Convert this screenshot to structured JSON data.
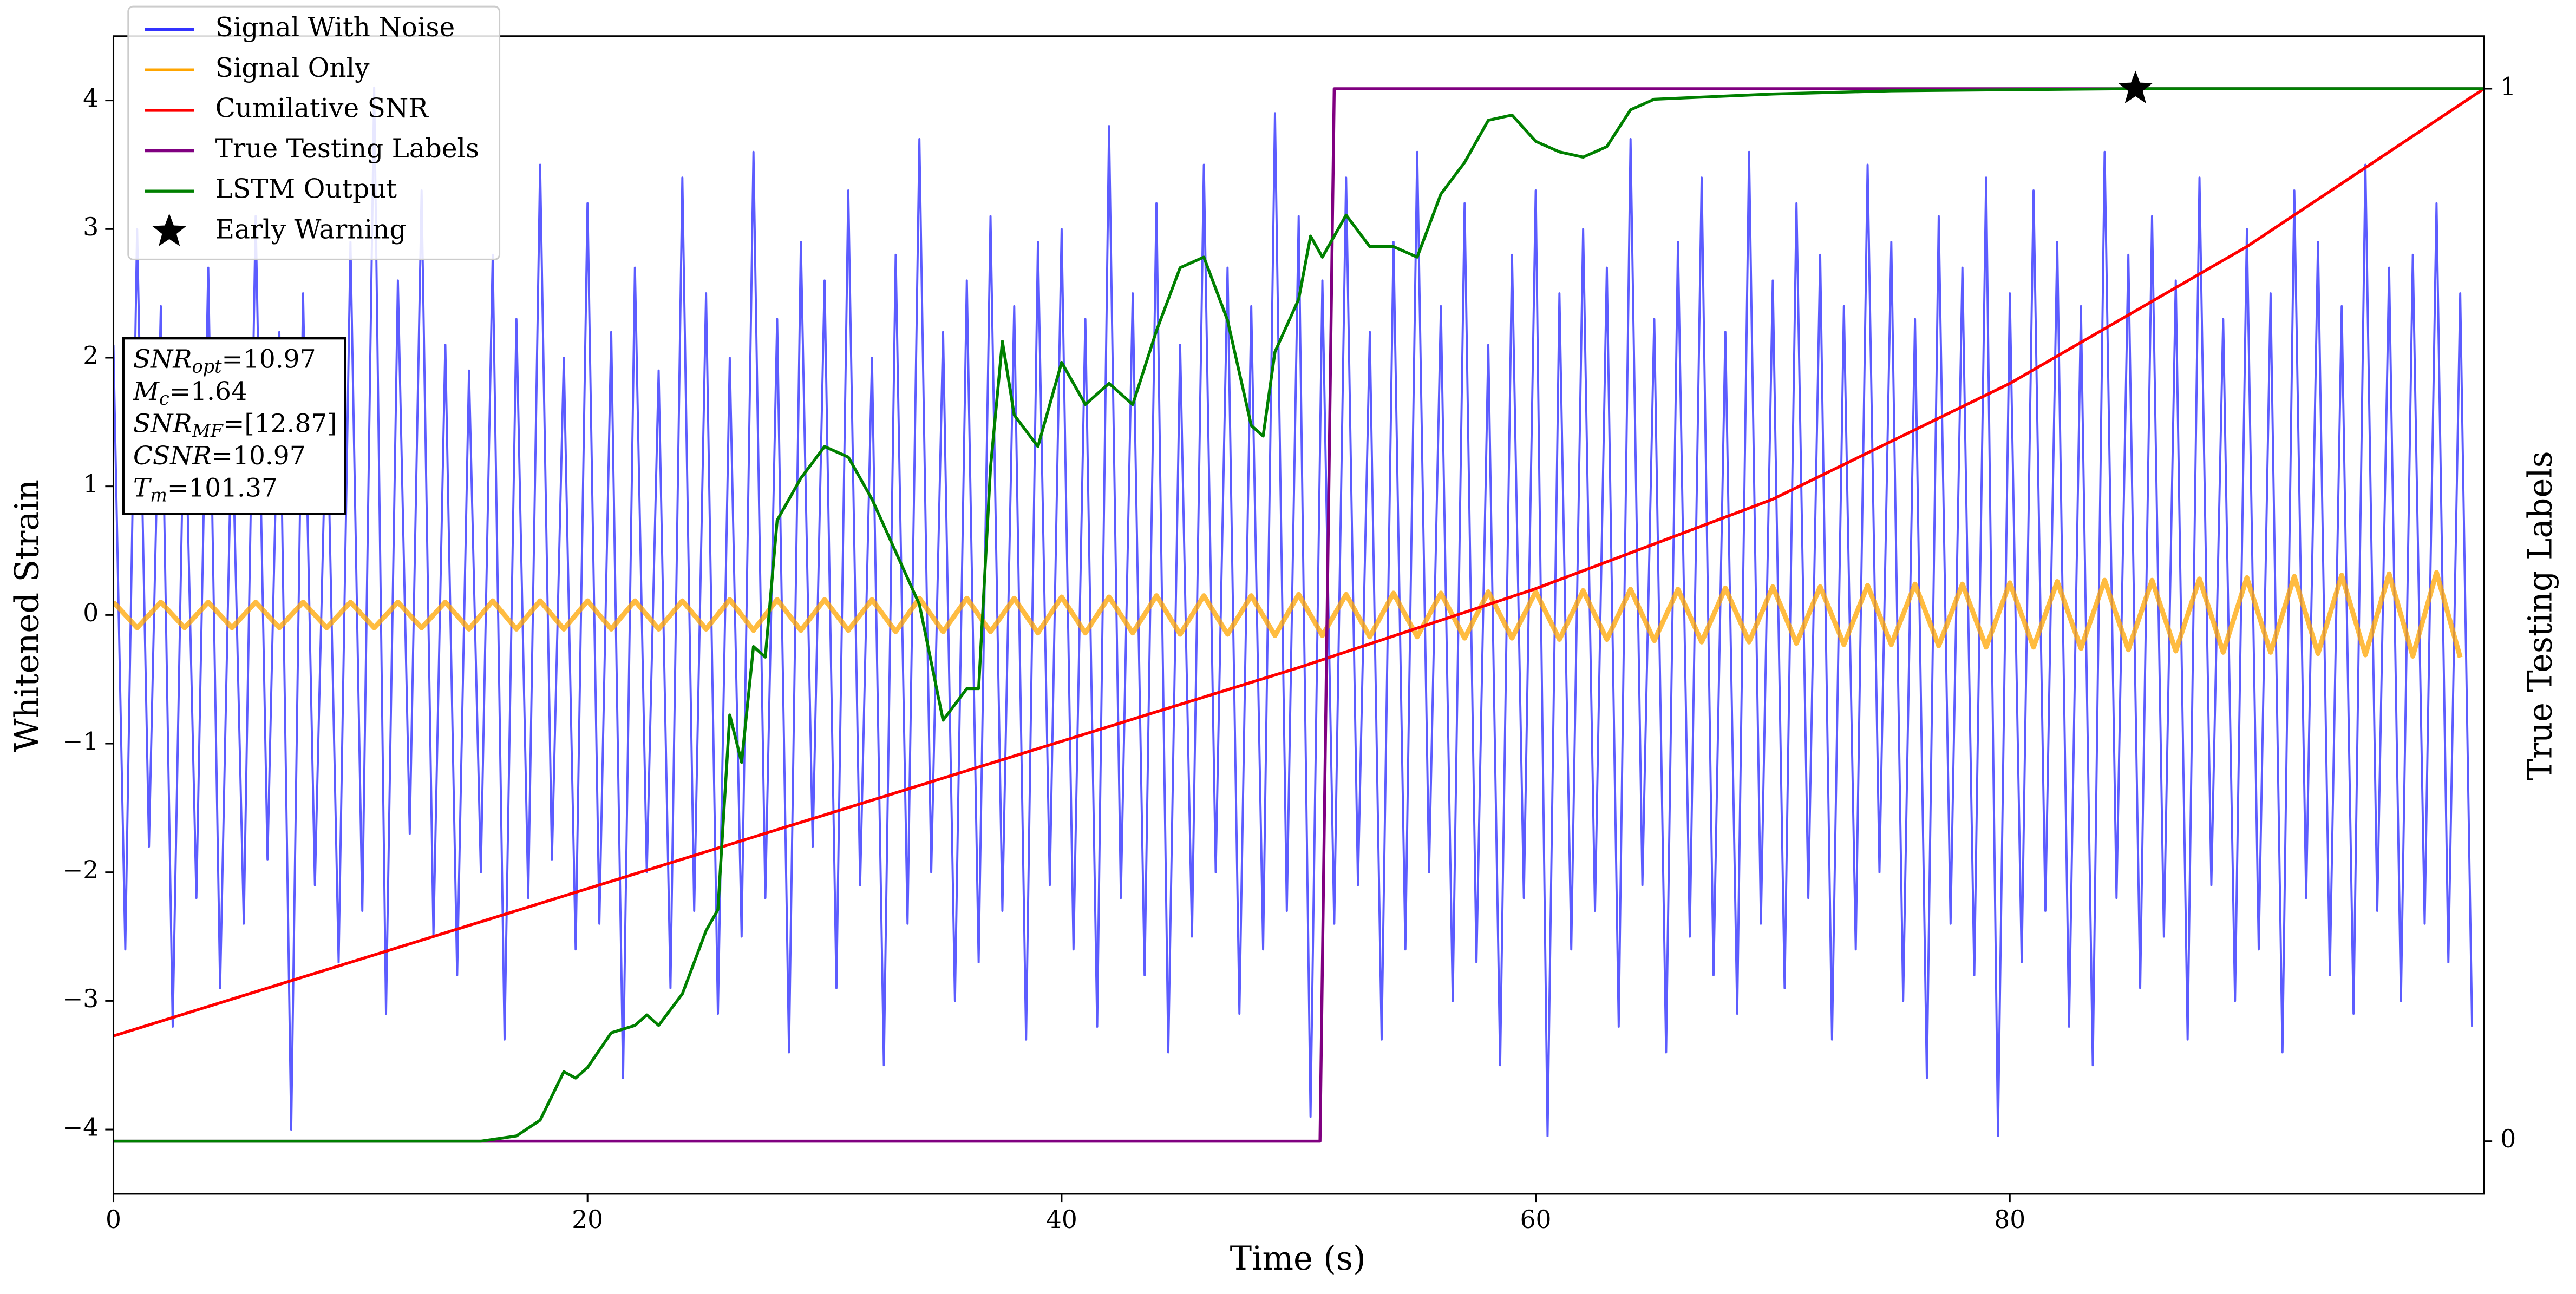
{
  "chart_data": {
    "type": "line",
    "xlabel": "Time (s)",
    "ylabel": "Whitened Strain",
    "y2label": "True Testing Labels",
    "xlim": [
      0,
      100
    ],
    "ylim": [
      -4.5,
      4.5
    ],
    "y2lim": [
      -0.05,
      1.05
    ],
    "xticks": [
      0,
      20,
      40,
      60,
      80
    ],
    "yticks": [
      {
        "value": -4,
        "label": "−4"
      },
      {
        "value": -3,
        "label": "−3"
      },
      {
        "value": -2,
        "label": "−2"
      },
      {
        "value": -1,
        "label": "−1"
      },
      0,
      1,
      2,
      3,
      4
    ],
    "y2ticks": [
      0,
      1
    ],
    "grid": false,
    "legend": "upper left",
    "series": [
      {
        "name": "Signal With Noise",
        "color": "#3333ff",
        "x": [
          0,
          0.5,
          1,
          1.5,
          2,
          2.5,
          3,
          3.5,
          4,
          4.5,
          5,
          5.5,
          6,
          6.5,
          7,
          7.5,
          8,
          8.5,
          9,
          9.5,
          10,
          10.5,
          11,
          11.5,
          12,
          12.5,
          13,
          13.5,
          14,
          14.5,
          15,
          15.5,
          16,
          16.5,
          17,
          17.5,
          18,
          18.5,
          19,
          19.5,
          20,
          20.5,
          21,
          21.5,
          22,
          22.5,
          23,
          23.5,
          24,
          24.5,
          25,
          25.5,
          26,
          26.5,
          27,
          27.5,
          28,
          28.5,
          29,
          29.5,
          30,
          30.5,
          31,
          31.5,
          32,
          32.5,
          33,
          33.5,
          34,
          34.5,
          35,
          35.5,
          36,
          36.5,
          37,
          37.5,
          38,
          38.5,
          39,
          39.5,
          40,
          40.5,
          41,
          41.5,
          42,
          42.5,
          43,
          43.5,
          44,
          44.5,
          45,
          45.5,
          46,
          46.5,
          47,
          47.5,
          48,
          48.5,
          49,
          49.5,
          50,
          50.5,
          51,
          51.5,
          52,
          52.5,
          53,
          53.5,
          54,
          54.5,
          55,
          55.5,
          56,
          56.5,
          57,
          57.5,
          58,
          58.5,
          59,
          59.5,
          60,
          60.5,
          61,
          61.5,
          62,
          62.5,
          63,
          63.5,
          64,
          64.5,
          65,
          65.5,
          66,
          66.5,
          67,
          67.5,
          68,
          68.5,
          69,
          69.5,
          70,
          70.5,
          71,
          71.5,
          72,
          72.5,
          73,
          73.5,
          74,
          74.5,
          75,
          75.5,
          76,
          76.5,
          77,
          77.5,
          78,
          78.5,
          79,
          79.5,
          80,
          80.5,
          81,
          81.5,
          82,
          82.5,
          83,
          83.5,
          84,
          84.5,
          85,
          85.5,
          86,
          86.5,
          87,
          87.5,
          88,
          88.5,
          89,
          89.5,
          90,
          90.5,
          91,
          91.5,
          92,
          92.5,
          93,
          93.5,
          94,
          94.5,
          95,
          95.5,
          96,
          96.5,
          97,
          97.5,
          98,
          98.5,
          99,
          99.5
        ],
        "values": [
          2.1,
          -2.6,
          3.0,
          -1.8,
          2.4,
          -3.2,
          1.9,
          -2.2,
          2.7,
          -2.9,
          1.6,
          -2.4,
          3.1,
          -1.9,
          2.2,
          -4.0,
          2.5,
          -2.1,
          1.8,
          -2.7,
          2.9,
          -2.3,
          4.1,
          -3.1,
          2.6,
          -1.7,
          3.3,
          -2.5,
          2.1,
          -2.8,
          1.9,
          -2.0,
          2.8,
          -3.3,
          2.3,
          -2.2,
          3.5,
          -1.9,
          2.0,
          -2.6,
          3.2,
          -2.4,
          2.2,
          -3.6,
          2.7,
          -2.0,
          1.9,
          -2.9,
          3.4,
          -2.3,
          2.5,
          -3.1,
          2.0,
          -2.5,
          3.6,
          -2.2,
          2.3,
          -3.4,
          2.9,
          -1.8,
          2.6,
          -2.9,
          3.3,
          -2.1,
          2.0,
          -3.5,
          2.8,
          -2.4,
          3.7,
          -2.0,
          2.2,
          -3.0,
          2.6,
          -2.7,
          3.1,
          -2.3,
          2.4,
          -3.3,
          2.9,
          -2.1,
          3.0,
          -2.6,
          2.3,
          -3.2,
          3.8,
          -2.2,
          2.5,
          -2.8,
          3.2,
          -3.4,
          2.1,
          -2.5,
          3.5,
          -2.0,
          2.7,
          -3.1,
          2.4,
          -2.6,
          3.9,
          -2.3,
          3.1,
          -3.9,
          2.6,
          -2.4,
          3.4,
          -2.1,
          2.2,
          -3.3,
          2.9,
          -2.6,
          3.6,
          -2.0,
          2.4,
          -3.0,
          3.2,
          -2.7,
          2.1,
          -3.5,
          2.8,
          -2.2,
          3.3,
          -4.05,
          2.5,
          -2.6,
          3.0,
          -2.3,
          2.7,
          -3.2,
          3.7,
          -2.1,
          2.3,
          -3.4,
          2.9,
          -2.5,
          3.4,
          -2.8,
          2.2,
          -3.1,
          3.6,
          -2.4,
          2.6,
          -2.9,
          3.2,
          -2.2,
          2.8,
          -3.3,
          2.4,
          -2.6,
          3.5,
          -2.0,
          2.9,
          -3.0,
          2.3,
          -3.6,
          3.1,
          -2.4,
          2.7,
          -2.8,
          3.4,
          -4.05,
          2.5,
          -2.7,
          3.3,
          -2.3,
          2.9,
          -3.2,
          2.4,
          -3.5,
          3.6,
          -2.2,
          2.8,
          -2.9,
          3.1,
          -2.5,
          2.6,
          -3.3,
          3.4,
          -2.1,
          2.3,
          -3.0,
          3.0,
          -2.6,
          2.5,
          -3.4,
          3.3,
          -2.2,
          2.9,
          -2.8,
          2.4,
          -3.1,
          3.5,
          -2.3,
          2.7,
          -3.0,
          2.8,
          -2.4,
          3.2,
          -2.7,
          2.5,
          -3.2
        ]
      },
      {
        "name": "Signal Only",
        "color": "#ffa500",
        "x": [
          0,
          1,
          2,
          3,
          4,
          5,
          6,
          7,
          8,
          9,
          10,
          11,
          12,
          13,
          14,
          15,
          16,
          17,
          18,
          19,
          20,
          21,
          22,
          23,
          24,
          25,
          26,
          27,
          28,
          29,
          30,
          31,
          32,
          33,
          34,
          35,
          36,
          37,
          38,
          39,
          40,
          41,
          42,
          43,
          44,
          45,
          46,
          47,
          48,
          49,
          50,
          51,
          52,
          53,
          54,
          55,
          56,
          57,
          58,
          59,
          60,
          61,
          62,
          63,
          64,
          65,
          66,
          67,
          68,
          69,
          70,
          71,
          72,
          73,
          74,
          75,
          76,
          77,
          78,
          79,
          80,
          81,
          82,
          83,
          84,
          85,
          86,
          87,
          88,
          89,
          90,
          91,
          92,
          93,
          94,
          95,
          96,
          97,
          98,
          99
        ],
        "values": [
          0.1,
          -0.1,
          0.1,
          -0.1,
          0.1,
          -0.1,
          0.1,
          -0.1,
          0.1,
          -0.1,
          0.1,
          -0.1,
          0.1,
          -0.1,
          0.1,
          -0.11,
          0.11,
          -0.11,
          0.11,
          -0.11,
          0.11,
          -0.11,
          0.11,
          -0.11,
          0.11,
          -0.11,
          0.12,
          -0.12,
          0.12,
          -0.12,
          0.12,
          -0.12,
          0.12,
          -0.13,
          0.13,
          -0.13,
          0.13,
          -0.13,
          0.13,
          -0.14,
          0.14,
          -0.14,
          0.14,
          -0.14,
          0.15,
          -0.15,
          0.15,
          -0.15,
          0.15,
          -0.16,
          0.16,
          -0.16,
          0.16,
          -0.17,
          0.17,
          -0.17,
          0.17,
          -0.18,
          0.18,
          -0.18,
          0.18,
          -0.19,
          0.19,
          -0.19,
          0.2,
          -0.2,
          0.2,
          -0.21,
          0.21,
          -0.21,
          0.22,
          -0.22,
          0.22,
          -0.23,
          0.23,
          -0.23,
          0.24,
          -0.24,
          0.24,
          -0.25,
          0.25,
          -0.25,
          0.26,
          -0.26,
          0.27,
          -0.27,
          0.27,
          -0.28,
          0.28,
          -0.29,
          0.29,
          -0.29,
          0.3,
          -0.3,
          0.31,
          -0.31,
          0.32,
          -0.32,
          0.33,
          -0.33
        ]
      },
      {
        "name": "Cumilative SNR",
        "color": "#ff0000",
        "axis": "y2",
        "x": [
          0,
          10,
          20,
          30,
          40,
          50,
          60,
          70,
          80,
          90,
          100
        ],
        "values": [
          0.1,
          0.17,
          0.24,
          0.31,
          0.38,
          0.45,
          0.525,
          0.61,
          0.72,
          0.85,
          1.0
        ]
      },
      {
        "name": "True Testing Labels",
        "color": "#800080",
        "axis": "y2",
        "x": [
          0,
          50.9,
          51.5,
          100
        ],
        "values": [
          0,
          0,
          1,
          1
        ]
      },
      {
        "name": "LSTM Output",
        "color": "#008000",
        "axis": "y2",
        "x": [
          0,
          15.5,
          17,
          18,
          19,
          19.5,
          20,
          21,
          22,
          22.5,
          23,
          24,
          25,
          25.5,
          26,
          26.5,
          27,
          27.5,
          28,
          29,
          30,
          31,
          32,
          33,
          34,
          35,
          36,
          36.5,
          37,
          37.5,
          38,
          39,
          40,
          41,
          42,
          43,
          44,
          45,
          46,
          47,
          48,
          48.5,
          49,
          50,
          50.5,
          51,
          52,
          53,
          54,
          55,
          56,
          57,
          58,
          59,
          60,
          61,
          62,
          63,
          64,
          65,
          70,
          75,
          80,
          85,
          100
        ],
        "values": [
          0,
          0,
          0.005,
          0.02,
          0.066,
          0.06,
          0.07,
          0.103,
          0.11,
          0.12,
          0.11,
          0.14,
          0.2,
          0.22,
          0.405,
          0.36,
          0.47,
          0.46,
          0.59,
          0.63,
          0.66,
          0.65,
          0.61,
          0.56,
          0.51,
          0.4,
          0.43,
          0.43,
          0.64,
          0.76,
          0.69,
          0.66,
          0.74,
          0.7,
          0.72,
          0.7,
          0.77,
          0.83,
          0.84,
          0.78,
          0.68,
          0.67,
          0.75,
          0.8,
          0.86,
          0.84,
          0.88,
          0.85,
          0.85,
          0.84,
          0.9,
          0.93,
          0.97,
          0.975,
          0.95,
          0.94,
          0.935,
          0.945,
          0.98,
          0.99,
          0.995,
          0.998,
          0.999,
          1.0,
          1.0
        ]
      }
    ],
    "markers": [
      {
        "name": "Early Warning",
        "color": "#000000",
        "axis": "y2",
        "x": 85.3,
        "y": 1.0
      }
    ],
    "annotations": [
      {
        "symbol": "SNR",
        "subscript": "opt",
        "text": "=10.97"
      },
      {
        "symbol": "M",
        "subscript": "c",
        "text": "=1.64"
      },
      {
        "symbol": "SNR",
        "subscript": "MF",
        "text": "=[12.87]"
      },
      {
        "symbol": "CSNR",
        "text": "=10.97"
      },
      {
        "symbol": "T",
        "subscript": "m",
        "text": "=101.37"
      }
    ]
  }
}
